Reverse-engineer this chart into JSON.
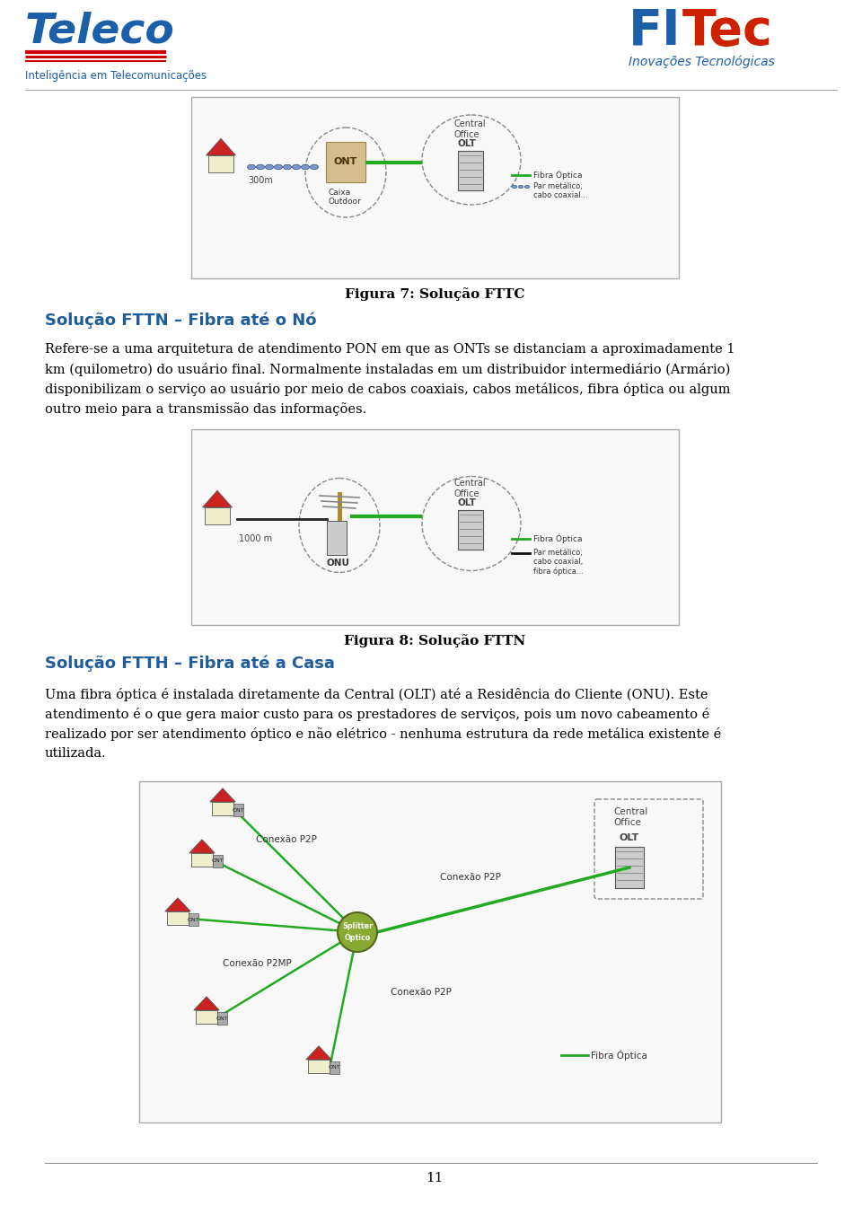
{
  "page_width": 9.6,
  "page_height": 13.43,
  "bg_color": "#ffffff",
  "teleco_subtitle": "Inteligência em Telecomunicações",
  "fitec_subtitle": "Inovações Tecnológicas",
  "fig7_caption": "Figura 7: Solução FTTC",
  "fig8_caption": "Figura 8: Solução FTTN",
  "section1_title": "Solução FTTN – Fibra até o Nó",
  "section2_title": "Solução FTTH – Fibra até a Casa",
  "para1_line1": "Refere-se a uma arquitetura de atendimento PON em que as ONTs se distanciam a aproximadamente 1",
  "para1_line2": "km (quilometro) do usuário final. Normalmente instaladas em um distribuidor intermediário (Armário)",
  "para1_line3": "disponibilizam o serviço ao usuário por meio de cabos coaxiais, cabos metálicos, fibra óptica ou algum",
  "para1_line4": "outro meio para a transmissão das informações.",
  "para2_line1": "Uma fibra óptica é instalada diretamente da Central (OLT) até a Residência do Cliente (ONU). Este",
  "para2_line2": "atendimento é o que gera maior custo para os prestadores de serviços, pois um novo cabeamento é",
  "para2_line3": "realizado por ser atendimento óptico e não elétrico - nenhuma estrutura da rede metálica existente é",
  "para2_line4": "utilizada.",
  "page_number": "11",
  "heading_color": "#1f5c99",
  "text_color": "#000000",
  "caption_color": "#000000"
}
